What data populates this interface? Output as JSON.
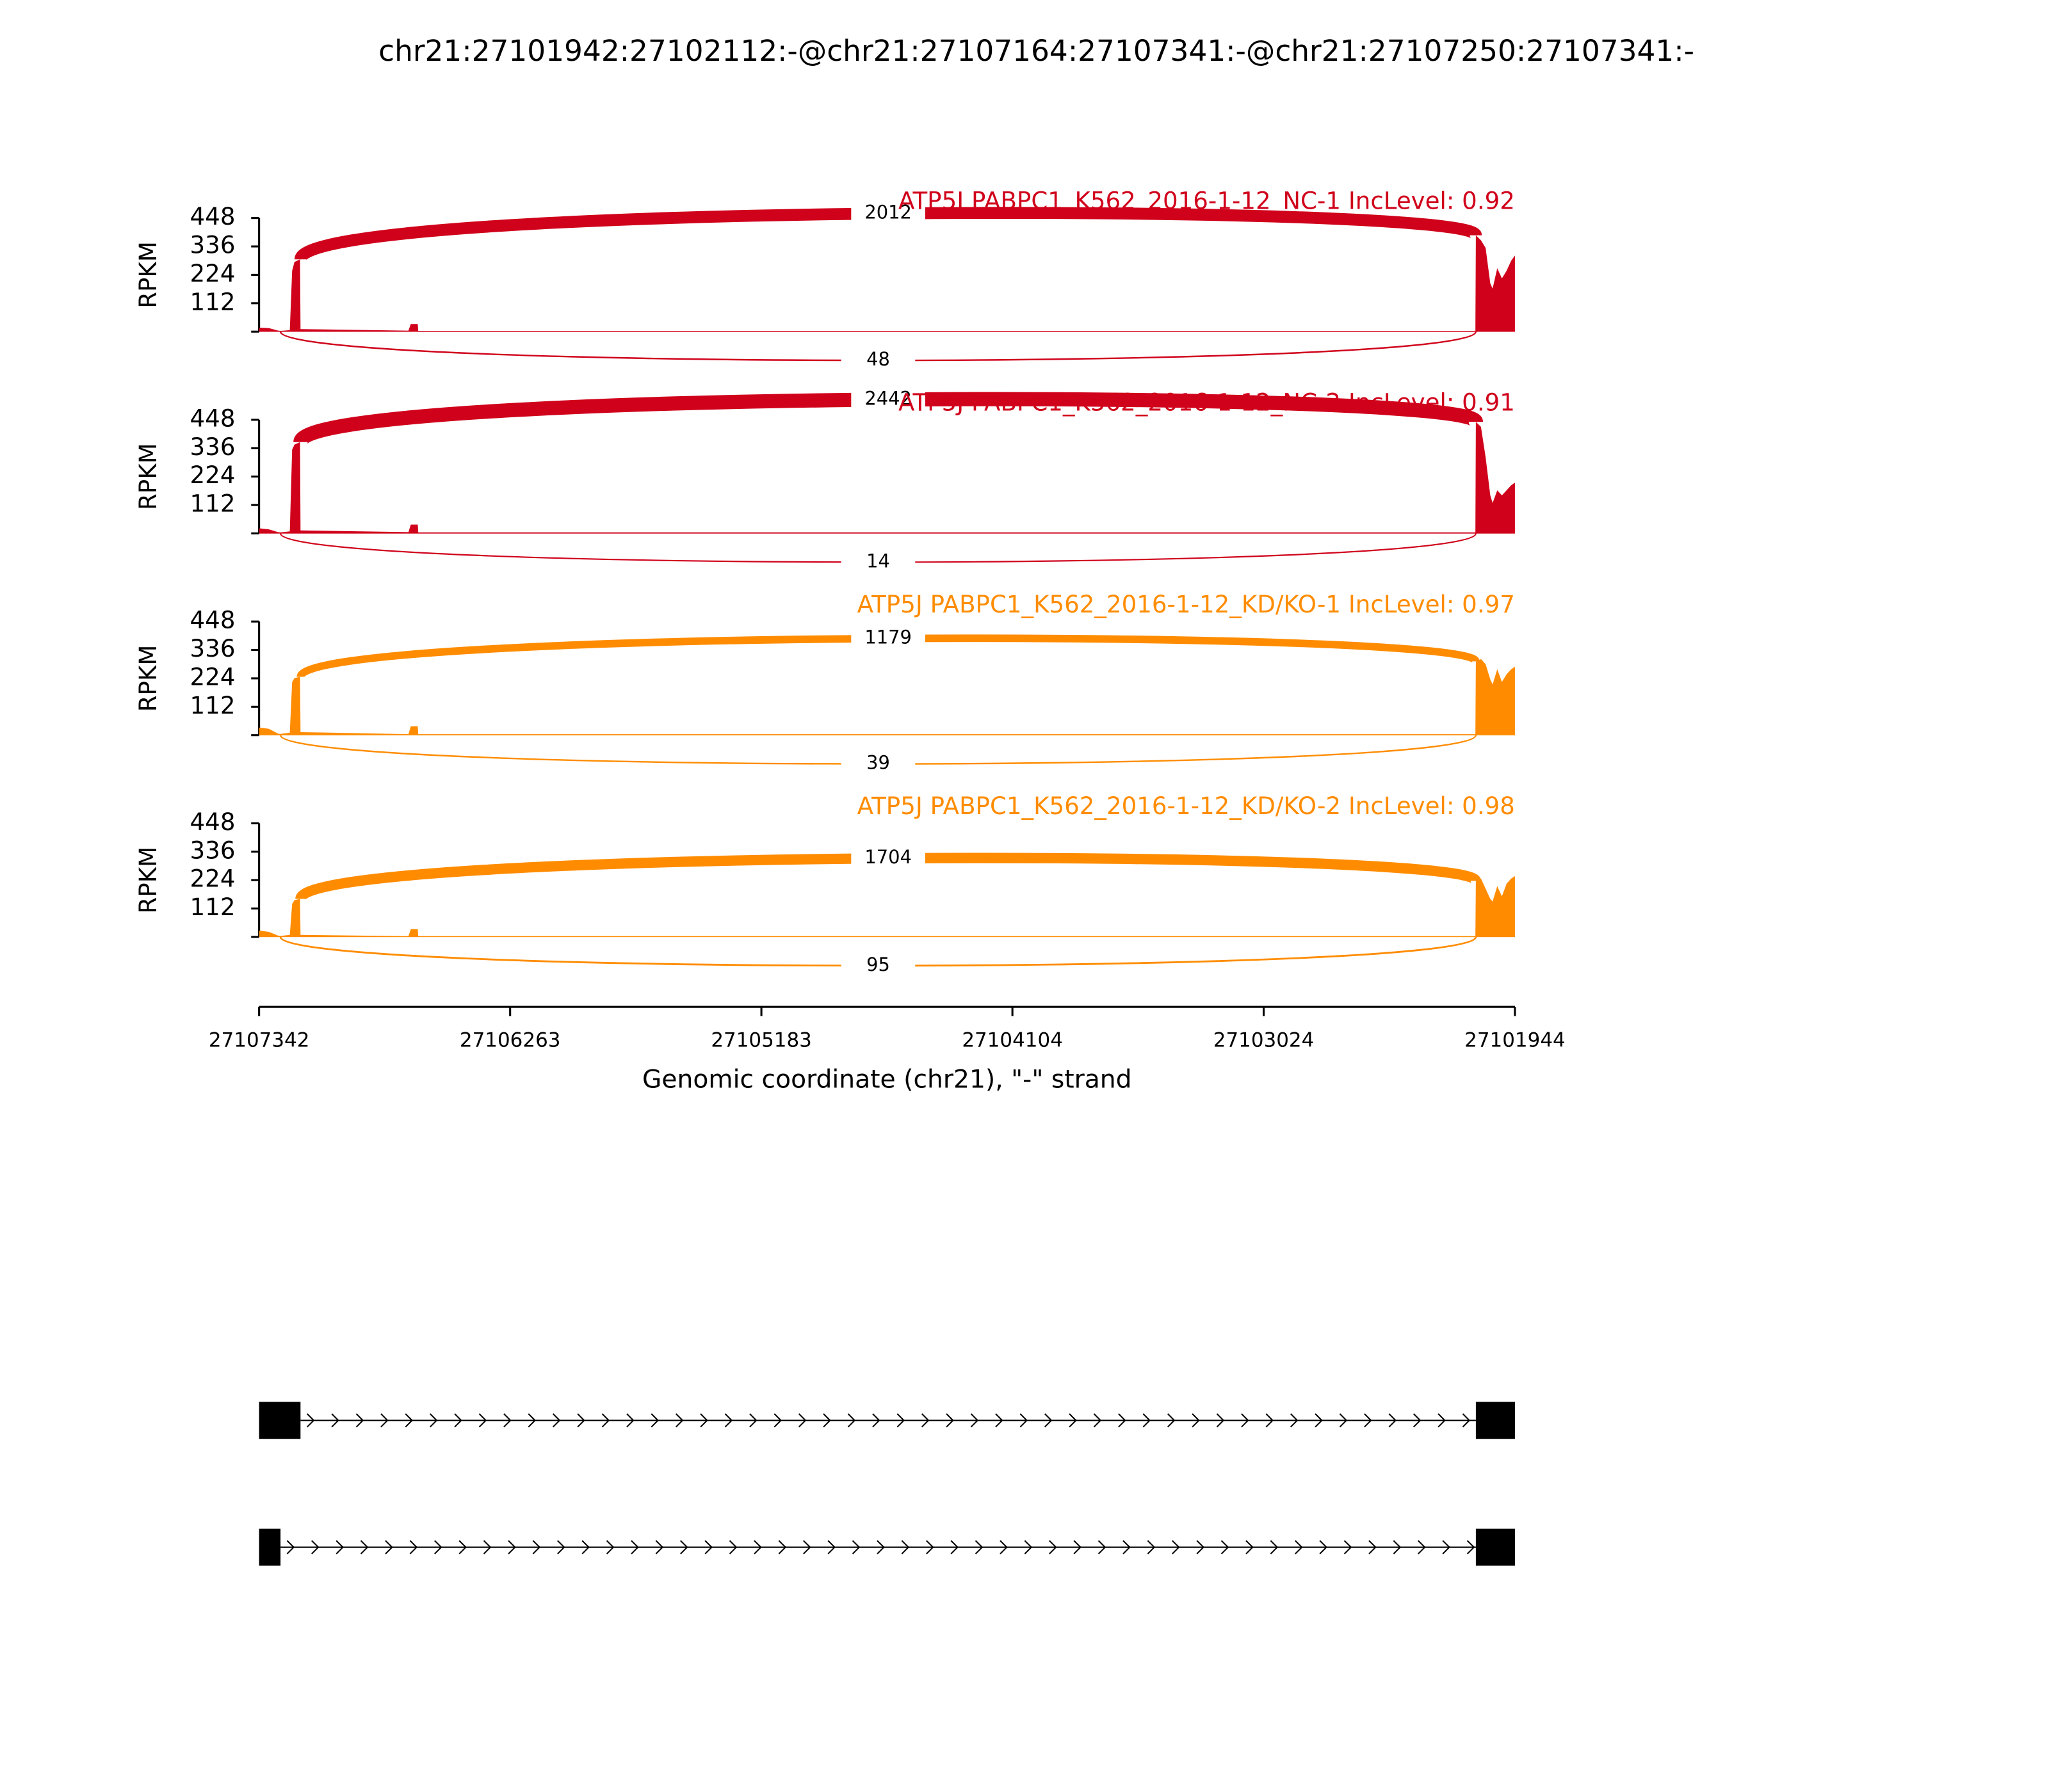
{
  "title": "chr21:27101942:27102112:-@chr21:27107164:27107341:-@chr21:27107250:27107341:-",
  "chart_data": [
    {
      "type": "sashimi",
      "title": "ATP5J PABPC1_K562_2016-1-12_NC-1 IncLevel: 0.92",
      "ylabel": "RPKM",
      "color": "#d0021b",
      "ylim": [
        0,
        448
      ],
      "yticks": [
        112,
        224,
        336,
        448
      ],
      "x": [
        27107342,
        27107300,
        27107260,
        27107250,
        27107210,
        27107200,
        27107190,
        27107166,
        27107164,
        27106700,
        27106690,
        27106660,
        27106658,
        27102114,
        27102112,
        27102090,
        27102070,
        27102050,
        27102040,
        27102020,
        27102000,
        27101980,
        27101960,
        27101944
      ],
      "values": [
        16,
        14,
        4,
        3,
        6,
        240,
        275,
        285,
        10,
        4,
        30,
        30,
        3,
        3,
        380,
        360,
        330,
        190,
        170,
        250,
        210,
        240,
        280,
        300
      ],
      "junctions": [
        {
          "start": 27107164,
          "end": 27102112,
          "count": 2012,
          "side": "top"
        },
        {
          "start": 27107250,
          "end": 27102112,
          "count": 48,
          "side": "bottom"
        }
      ]
    },
    {
      "type": "sashimi",
      "title": "ATP5J PABPC1_K562_2016-1-12_NC-2 IncLevel: 0.91",
      "ylabel": "RPKM",
      "color": "#d0021b",
      "ylim": [
        0,
        448
      ],
      "yticks": [
        112,
        224,
        336,
        448
      ],
      "x": [
        27107342,
        27107300,
        27107260,
        27107250,
        27107210,
        27107200,
        27107190,
        27107166,
        27107164,
        27106700,
        27106690,
        27106660,
        27106658,
        27102114,
        27102112,
        27102090,
        27102070,
        27102050,
        27102040,
        27102020,
        27102000,
        27101980,
        27101960,
        27101944
      ],
      "values": [
        20,
        16,
        5,
        4,
        8,
        330,
        350,
        360,
        12,
        5,
        35,
        35,
        4,
        4,
        440,
        420,
        300,
        150,
        120,
        170,
        150,
        170,
        190,
        200
      ],
      "junctions": [
        {
          "start": 27107164,
          "end": 27102112,
          "count": 2442,
          "side": "top"
        },
        {
          "start": 27107250,
          "end": 27102112,
          "count": 14,
          "side": "bottom"
        }
      ]
    },
    {
      "type": "sashimi",
      "title": "ATP5J PABPC1_K562_2016-1-12_KD/KO-1 IncLevel: 0.97",
      "ylabel": "RPKM",
      "color": "#ff8c00",
      "ylim": [
        0,
        448
      ],
      "yticks": [
        112,
        224,
        336,
        448
      ],
      "x": [
        27107342,
        27107300,
        27107260,
        27107250,
        27107210,
        27107200,
        27107190,
        27107166,
        27107164,
        27106700,
        27106690,
        27106660,
        27106658,
        27102114,
        27102112,
        27102090,
        27102070,
        27102050,
        27102040,
        27102020,
        27102000,
        27101980,
        27101960,
        27101944
      ],
      "values": [
        30,
        25,
        6,
        5,
        10,
        210,
        225,
        230,
        12,
        4,
        35,
        35,
        4,
        4,
        290,
        300,
        280,
        220,
        200,
        260,
        210,
        240,
        260,
        270
      ],
      "junctions": [
        {
          "start": 27107164,
          "end": 27102112,
          "count": 1179,
          "side": "top"
        },
        {
          "start": 27107250,
          "end": 27102112,
          "count": 39,
          "side": "bottom"
        }
      ]
    },
    {
      "type": "sashimi",
      "title": "ATP5J PABPC1_K562_2016-1-12_KD/KO-2 IncLevel: 0.98",
      "ylabel": "RPKM",
      "color": "#ff8c00",
      "ylim": [
        0,
        448
      ],
      "yticks": [
        112,
        224,
        336,
        448
      ],
      "x": [
        27107342,
        27107300,
        27107260,
        27107250,
        27107210,
        27107200,
        27107190,
        27107166,
        27107164,
        27106700,
        27106690,
        27106660,
        27106658,
        27102114,
        27102112,
        27102090,
        27102070,
        27102050,
        27102040,
        27102020,
        27102000,
        27101980,
        27101960,
        27101944
      ],
      "values": [
        25,
        20,
        5,
        4,
        8,
        130,
        145,
        150,
        8,
        3,
        30,
        30,
        3,
        3,
        220,
        230,
        190,
        150,
        140,
        200,
        160,
        210,
        230,
        240
      ],
      "junctions": [
        {
          "start": 27107164,
          "end": 27102112,
          "count": 1704,
          "side": "top"
        },
        {
          "start": 27107250,
          "end": 27102112,
          "count": 95,
          "side": "bottom"
        }
      ],
      "xlabel": "Genomic coordinate (chr21), \"-\" strand",
      "xlim": [
        27107342,
        27101944
      ],
      "xticks": [
        27107342,
        27106263,
        27105183,
        27104104,
        27103024,
        27101944
      ]
    }
  ],
  "transcripts": [
    {
      "exons": [
        [
          27107342,
          27107164
        ],
        [
          27102112,
          27101944
        ]
      ]
    },
    {
      "exons": [
        [
          27107342,
          27107250
        ],
        [
          27102112,
          27101944
        ]
      ]
    }
  ]
}
